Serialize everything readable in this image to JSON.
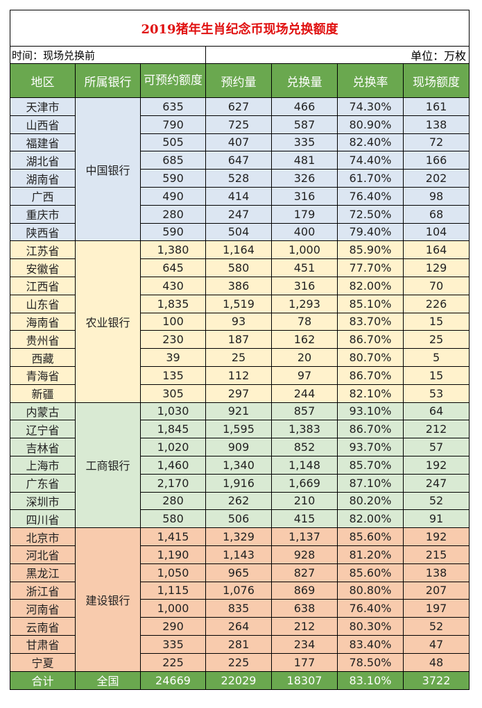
{
  "title": "2019猪年生肖纪念币现场兑换额度",
  "time_label": "时间：现场兑换前",
  "unit_label": "单位：万枚",
  "headers": [
    "地区",
    "所属银行",
    "可预约额度",
    "预约量",
    "兑换量",
    "兑换率",
    "现场额度"
  ],
  "groups": [
    {
      "bank": "中国银行",
      "color": "#dce6f2",
      "rows": [
        [
          "天津市",
          "635",
          "627",
          "466",
          "74.30%",
          "161"
        ],
        [
          "山西省",
          "790",
          "725",
          "587",
          "80.90%",
          "138"
        ],
        [
          "福建省",
          "505",
          "407",
          "335",
          "82.40%",
          "72"
        ],
        [
          "湖北省",
          "685",
          "647",
          "481",
          "74.40%",
          "166"
        ],
        [
          "湖南省",
          "590",
          "528",
          "326",
          "61.70%",
          "202"
        ],
        [
          "广西",
          "490",
          "414",
          "316",
          "76.40%",
          "98"
        ],
        [
          "重庆市",
          "280",
          "247",
          "179",
          "72.50%",
          "68"
        ],
        [
          "陕西省",
          "590",
          "504",
          "400",
          "79.40%",
          "104"
        ]
      ]
    },
    {
      "bank": "农业银行",
      "color": "#fff2cc",
      "rows": [
        [
          "江苏省",
          "1,380",
          "1,164",
          "1,000",
          "85.90%",
          "164"
        ],
        [
          "安徽省",
          "645",
          "580",
          "451",
          "77.70%",
          "129"
        ],
        [
          "江西省",
          "430",
          "386",
          "316",
          "82.00%",
          "70"
        ],
        [
          "山东省",
          "1,835",
          "1,519",
          "1,293",
          "85.10%",
          "226"
        ],
        [
          "海南省",
          "100",
          "93",
          "78",
          "83.70%",
          "15"
        ],
        [
          "贵州省",
          "230",
          "187",
          "162",
          "86.70%",
          "25"
        ],
        [
          "西藏",
          "39",
          "25",
          "20",
          "80.70%",
          "5"
        ],
        [
          "青海省",
          "135",
          "112",
          "97",
          "86.70%",
          "15"
        ],
        [
          "新疆",
          "305",
          "297",
          "244",
          "82.10%",
          "53"
        ]
      ]
    },
    {
      "bank": "工商银行",
      "color": "#d9ead3",
      "rows": [
        [
          "内蒙古",
          "1,030",
          "921",
          "857",
          "93.10%",
          "64"
        ],
        [
          "辽宁省",
          "1,845",
          "1,595",
          "1,383",
          "86.70%",
          "212"
        ],
        [
          "吉林省",
          "1,020",
          "909",
          "852",
          "93.70%",
          "57"
        ],
        [
          "上海市",
          "1,460",
          "1,340",
          "1,148",
          "85.70%",
          "192"
        ],
        [
          "广东省",
          "2,170",
          "1,916",
          "1,669",
          "87.10%",
          "247"
        ],
        [
          "深圳市",
          "280",
          "262",
          "210",
          "80.20%",
          "52"
        ],
        [
          "四川省",
          "580",
          "506",
          "415",
          "82.00%",
          "91"
        ]
      ]
    },
    {
      "bank": "建设银行",
      "color": "#f8cbad",
      "rows": [
        [
          "北京市",
          "1,415",
          "1,329",
          "1,137",
          "85.60%",
          "192"
        ],
        [
          "河北省",
          "1,190",
          "1,143",
          "928",
          "81.20%",
          "215"
        ],
        [
          "黑龙江",
          "1,050",
          "965",
          "827",
          "85.60%",
          "138"
        ],
        [
          "浙江省",
          "1,115",
          "1,076",
          "869",
          "80.80%",
          "207"
        ],
        [
          "河南省",
          "1,000",
          "835",
          "638",
          "76.40%",
          "197"
        ],
        [
          "云南省",
          "290",
          "264",
          "212",
          "80.30%",
          "52"
        ],
        [
          "甘肃省",
          "335",
          "281",
          "234",
          "83.40%",
          "47"
        ],
        [
          "宁夏",
          "225",
          "225",
          "177",
          "78.50%",
          "48"
        ]
      ]
    }
  ],
  "total": [
    "合计",
    "全国",
    "24669",
    "22029",
    "18307",
    "83.10%",
    "3722"
  ]
}
